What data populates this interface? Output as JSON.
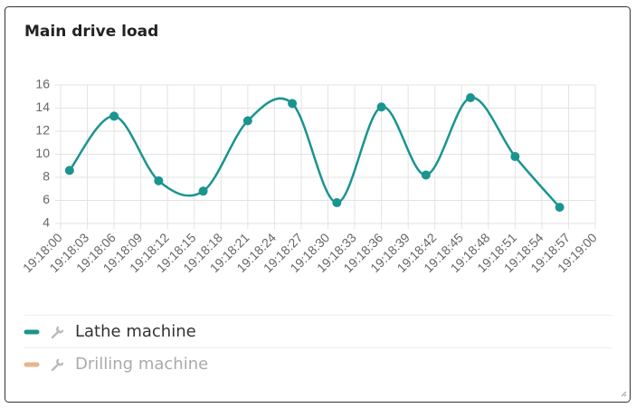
{
  "chart_data": {
    "type": "line",
    "title": "Main drive load",
    "x": [
      "19:18:01",
      "19:18:06",
      "19:18:11",
      "19:18:16",
      "19:18:21",
      "19:18:26",
      "19:18:31",
      "19:18:36",
      "19:18:41",
      "19:18:46",
      "19:18:51",
      "19:18:56"
    ],
    "series": [
      {
        "name": "Lathe machine",
        "color": "#1a9490",
        "values": [
          8.6,
          13.3,
          7.7,
          6.8,
          12.9,
          14.4,
          5.8,
          14.1,
          8.2,
          14.9,
          9.8,
          5.4
        ]
      },
      {
        "name": "Drilling machine",
        "color": "#e8b48a",
        "hidden": true
      }
    ],
    "xlim": [
      "19:18:00",
      "19:19:00"
    ],
    "xticks": [
      "19:18:00",
      "19:18:03",
      "19:18:06",
      "19:18:09",
      "19:18:12",
      "19:18:15",
      "19:18:18",
      "19:18:21",
      "19:18:24",
      "19:18:27",
      "19:18:30",
      "19:18:33",
      "19:18:36",
      "19:18:39",
      "19:18:42",
      "19:18:45",
      "19:18:48",
      "19:18:51",
      "19:18:54",
      "19:18:57",
      "19:19:00"
    ],
    "ylim": [
      4,
      16
    ],
    "yticks": [
      4,
      6,
      8,
      10,
      12,
      14,
      16
    ],
    "grid": true,
    "smooth": true
  }
}
